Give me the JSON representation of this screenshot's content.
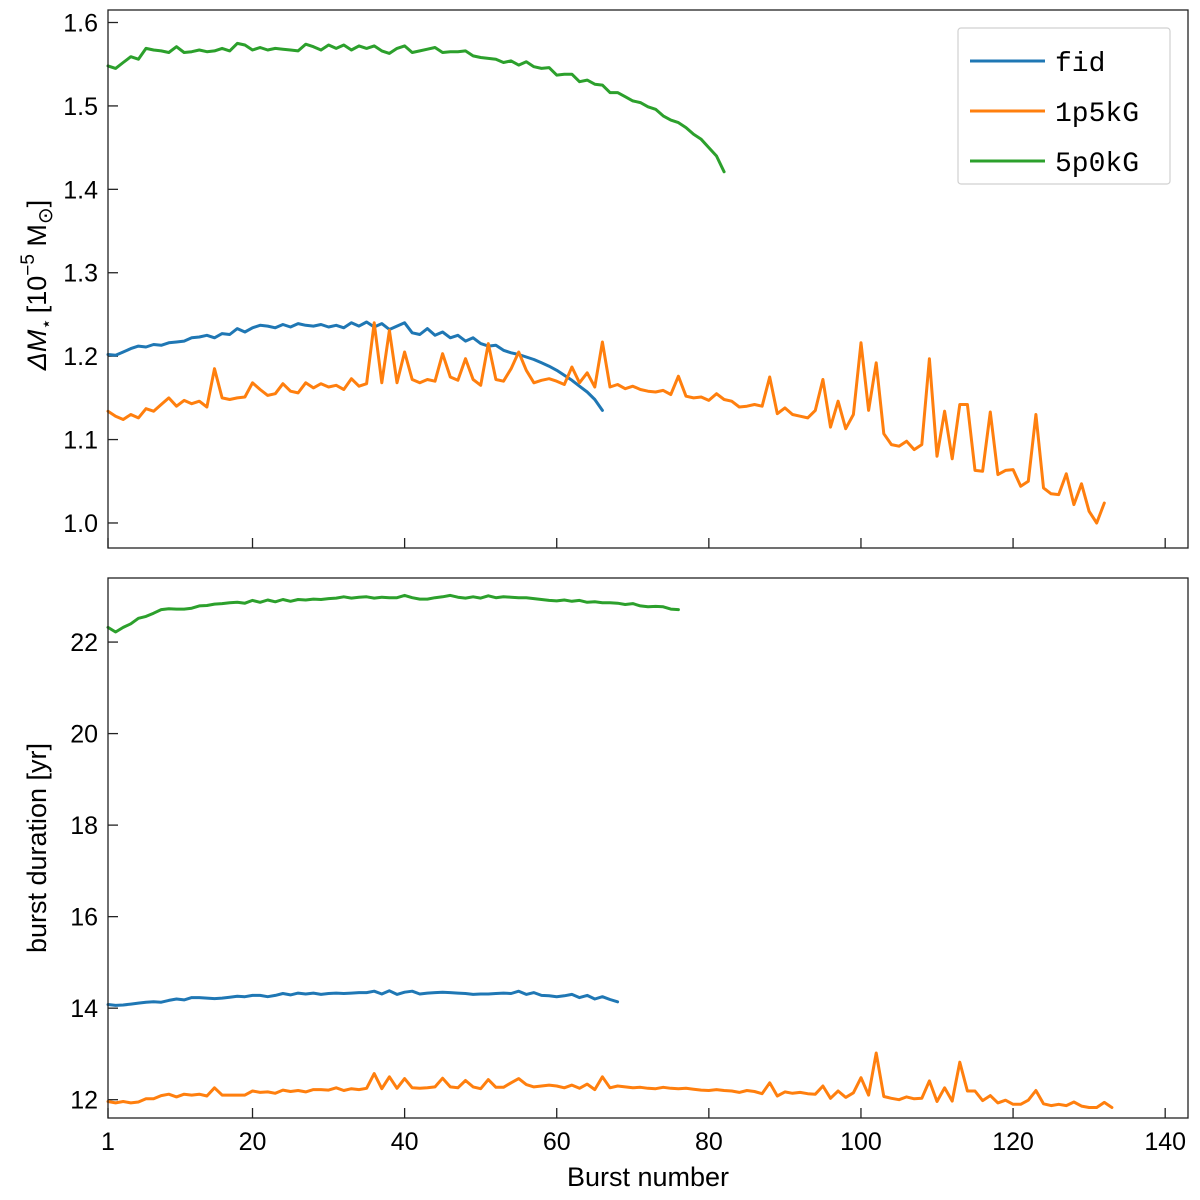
{
  "chart_data": [
    {
      "type": "line",
      "id": "top",
      "xlabel": "",
      "ylabel": "ΔM⋆ [10⁻⁵ M⊙]",
      "ylabel_parts": {
        "delta": "Δ",
        "m": "M",
        "star": "⋆",
        "bracket_open": "[10",
        "exponent": "−5",
        "unit_m": " M",
        "sun": "⊙",
        "bracket_close": "]"
      },
      "xlim": [
        1,
        143
      ],
      "ylim": [
        0.97,
        1.615
      ],
      "yticks": [
        1.0,
        1.1,
        1.2,
        1.3,
        1.4,
        1.5,
        1.6
      ],
      "yticklabels": [
        "1.0",
        "1.1",
        "1.2",
        "1.3",
        "1.4",
        "1.5",
        "1.6"
      ],
      "xticks": [
        1,
        20,
        40,
        60,
        80,
        100,
        120,
        140
      ],
      "legend": {
        "placement": "top-right",
        "entries": [
          "fid",
          "1p5kG",
          "5p0kG"
        ]
      },
      "series": [
        {
          "name": "fid",
          "color": "#1f77b4",
          "x_start": 1,
          "values": [
            1.202,
            1.201,
            1.205,
            1.209,
            1.212,
            1.211,
            1.214,
            1.213,
            1.216,
            1.217,
            1.218,
            1.222,
            1.223,
            1.225,
            1.222,
            1.227,
            1.226,
            1.233,
            1.229,
            1.234,
            1.237,
            1.236,
            1.234,
            1.238,
            1.235,
            1.239,
            1.237,
            1.236,
            1.238,
            1.235,
            1.237,
            1.234,
            1.24,
            1.236,
            1.241,
            1.235,
            1.239,
            1.232,
            1.236,
            1.24,
            1.228,
            1.226,
            1.233,
            1.225,
            1.229,
            1.222,
            1.225,
            1.218,
            1.222,
            1.215,
            1.212,
            1.213,
            1.207,
            1.204,
            1.202,
            1.199,
            1.196,
            1.192,
            1.188,
            1.183,
            1.177,
            1.171,
            1.164,
            1.157,
            1.148,
            1.135
          ]
        },
        {
          "name": "1p5kG",
          "color": "#ff7f0e",
          "x_start": 1,
          "values": [
            1.134,
            1.128,
            1.124,
            1.13,
            1.126,
            1.137,
            1.134,
            1.142,
            1.15,
            1.14,
            1.147,
            1.143,
            1.146,
            1.139,
            1.185,
            1.15,
            1.148,
            1.15,
            1.151,
            1.168,
            1.16,
            1.153,
            1.155,
            1.167,
            1.158,
            1.156,
            1.168,
            1.162,
            1.167,
            1.163,
            1.165,
            1.16,
            1.173,
            1.164,
            1.167,
            1.24,
            1.168,
            1.231,
            1.168,
            1.205,
            1.172,
            1.168,
            1.172,
            1.17,
            1.203,
            1.175,
            1.171,
            1.197,
            1.172,
            1.165,
            1.215,
            1.172,
            1.17,
            1.185,
            1.205,
            1.183,
            1.168,
            1.171,
            1.173,
            1.17,
            1.166,
            1.187,
            1.168,
            1.18,
            1.163,
            1.217,
            1.163,
            1.166,
            1.161,
            1.164,
            1.16,
            1.158,
            1.157,
            1.159,
            1.154,
            1.176,
            1.152,
            1.15,
            1.151,
            1.147,
            1.155,
            1.148,
            1.146,
            1.139,
            1.14,
            1.142,
            1.14,
            1.175,
            1.131,
            1.138,
            1.13,
            1.128,
            1.126,
            1.135,
            1.172,
            1.115,
            1.146,
            1.113,
            1.13,
            1.216,
            1.135,
            1.192,
            1.107,
            1.094,
            1.092,
            1.098,
            1.088,
            1.094,
            1.197,
            1.08,
            1.134,
            1.077,
            1.142,
            1.142,
            1.063,
            1.062,
            1.133,
            1.058,
            1.063,
            1.064,
            1.044,
            1.05,
            1.13,
            1.042,
            1.035,
            1.034,
            1.059,
            1.022,
            1.047,
            1.014,
            1.0,
            1.024
          ]
        },
        {
          "name": "5p0kG",
          "color": "#2ca02c",
          "x_start": 1,
          "values": [
            1.548,
            1.545,
            1.552,
            1.559,
            1.556,
            1.569,
            1.567,
            1.566,
            1.564,
            1.571,
            1.564,
            1.565,
            1.567,
            1.565,
            1.566,
            1.569,
            1.566,
            1.575,
            1.573,
            1.567,
            1.57,
            1.567,
            1.569,
            1.568,
            1.567,
            1.566,
            1.574,
            1.571,
            1.567,
            1.573,
            1.569,
            1.573,
            1.567,
            1.572,
            1.569,
            1.572,
            1.566,
            1.563,
            1.569,
            1.572,
            1.564,
            1.566,
            1.568,
            1.57,
            1.564,
            1.565,
            1.565,
            1.566,
            1.56,
            1.558,
            1.557,
            1.556,
            1.552,
            1.554,
            1.549,
            1.553,
            1.547,
            1.545,
            1.546,
            1.537,
            1.538,
            1.538,
            1.529,
            1.531,
            1.526,
            1.525,
            1.516,
            1.516,
            1.511,
            1.506,
            1.504,
            1.499,
            1.496,
            1.488,
            1.483,
            1.48,
            1.474,
            1.466,
            1.46,
            1.45,
            1.44,
            1.421
          ]
        }
      ]
    },
    {
      "type": "line",
      "id": "bottom",
      "xlabel": "Burst number",
      "ylabel": "burst duration [yr]",
      "xlim": [
        1,
        143
      ],
      "ylim": [
        11.6,
        23.4
      ],
      "yticks": [
        12,
        14,
        16,
        18,
        20,
        22
      ],
      "yticklabels": [
        "12",
        "14",
        "16",
        "18",
        "20",
        "22"
      ],
      "xticks": [
        1,
        20,
        40,
        60,
        80,
        100,
        120,
        140
      ],
      "xticklabels": [
        "1",
        "20",
        "40",
        "60",
        "80",
        "100",
        "120",
        "140"
      ],
      "series": [
        {
          "name": "fid",
          "color": "#1f77b4",
          "x_start": 1,
          "values": [
            14.08,
            14.06,
            14.07,
            14.09,
            14.11,
            14.13,
            14.14,
            14.13,
            14.17,
            14.2,
            14.18,
            14.23,
            14.23,
            14.22,
            14.21,
            14.22,
            14.24,
            14.26,
            14.25,
            14.28,
            14.28,
            14.25,
            14.28,
            14.32,
            14.29,
            14.33,
            14.31,
            14.33,
            14.3,
            14.32,
            14.33,
            14.32,
            14.33,
            14.34,
            14.34,
            14.37,
            14.31,
            14.38,
            14.3,
            14.35,
            14.37,
            14.31,
            14.33,
            14.34,
            14.35,
            14.34,
            14.33,
            14.32,
            14.3,
            14.31,
            14.31,
            14.32,
            14.33,
            14.32,
            14.37,
            14.3,
            14.34,
            14.28,
            14.27,
            14.25,
            14.27,
            14.3,
            14.23,
            14.28,
            14.2,
            14.25,
            14.19,
            14.14
          ]
        },
        {
          "name": "1p5kG",
          "color": "#ff7f0e",
          "x_start": 1,
          "values": [
            11.96,
            11.93,
            11.96,
            11.93,
            11.95,
            12.02,
            12.02,
            12.09,
            12.12,
            12.06,
            12.12,
            12.1,
            12.12,
            12.08,
            12.26,
            12.1,
            12.1,
            12.1,
            12.1,
            12.19,
            12.16,
            12.17,
            12.14,
            12.21,
            12.18,
            12.2,
            12.17,
            12.22,
            12.22,
            12.21,
            12.26,
            12.2,
            12.24,
            12.22,
            12.25,
            12.57,
            12.24,
            12.5,
            12.25,
            12.46,
            12.26,
            12.25,
            12.26,
            12.28,
            12.47,
            12.28,
            12.26,
            12.42,
            12.28,
            12.24,
            12.44,
            12.27,
            12.27,
            12.37,
            12.46,
            12.33,
            12.28,
            12.3,
            12.32,
            12.3,
            12.26,
            12.32,
            12.25,
            12.34,
            12.22,
            12.5,
            12.26,
            12.3,
            12.28,
            12.26,
            12.27,
            12.25,
            12.24,
            12.27,
            12.25,
            12.24,
            12.25,
            12.23,
            12.21,
            12.2,
            12.22,
            12.2,
            12.19,
            12.16,
            12.2,
            12.18,
            12.13,
            12.37,
            12.08,
            12.17,
            12.14,
            12.16,
            12.13,
            12.12,
            12.3,
            12.03,
            12.19,
            12.05,
            12.15,
            12.48,
            12.1,
            13.02,
            12.07,
            12.03,
            12.0,
            12.06,
            12.02,
            12.03,
            12.41,
            11.96,
            12.26,
            11.97,
            12.82,
            12.19,
            12.19,
            11.98,
            12.09,
            11.93,
            11.99,
            11.9,
            11.9,
            11.99,
            12.2,
            11.91,
            11.87,
            11.9,
            11.87,
            11.95,
            11.86,
            11.83,
            11.83,
            11.94,
            11.83
          ]
        },
        {
          "name": "5p0kG",
          "color": "#2ca02c",
          "x_start": 1,
          "values": [
            22.32,
            22.22,
            22.32,
            22.4,
            22.52,
            22.56,
            22.63,
            22.71,
            22.73,
            22.72,
            22.72,
            22.74,
            22.79,
            22.8,
            22.83,
            22.84,
            22.86,
            22.87,
            22.85,
            22.91,
            22.87,
            22.92,
            22.88,
            22.93,
            22.89,
            22.93,
            22.92,
            22.94,
            22.93,
            22.95,
            22.96,
            22.99,
            22.96,
            22.98,
            22.99,
            22.96,
            22.98,
            22.97,
            22.97,
            23.02,
            22.97,
            22.94,
            22.94,
            22.97,
            22.99,
            23.02,
            22.98,
            22.96,
            22.99,
            22.96,
            23.01,
            22.97,
            22.99,
            22.98,
            22.97,
            22.97,
            22.95,
            22.93,
            22.91,
            22.9,
            22.92,
            22.89,
            22.91,
            22.87,
            22.88,
            22.86,
            22.86,
            22.85,
            22.82,
            22.84,
            22.79,
            22.77,
            22.78,
            22.77,
            22.72,
            22.71
          ]
        }
      ]
    }
  ]
}
